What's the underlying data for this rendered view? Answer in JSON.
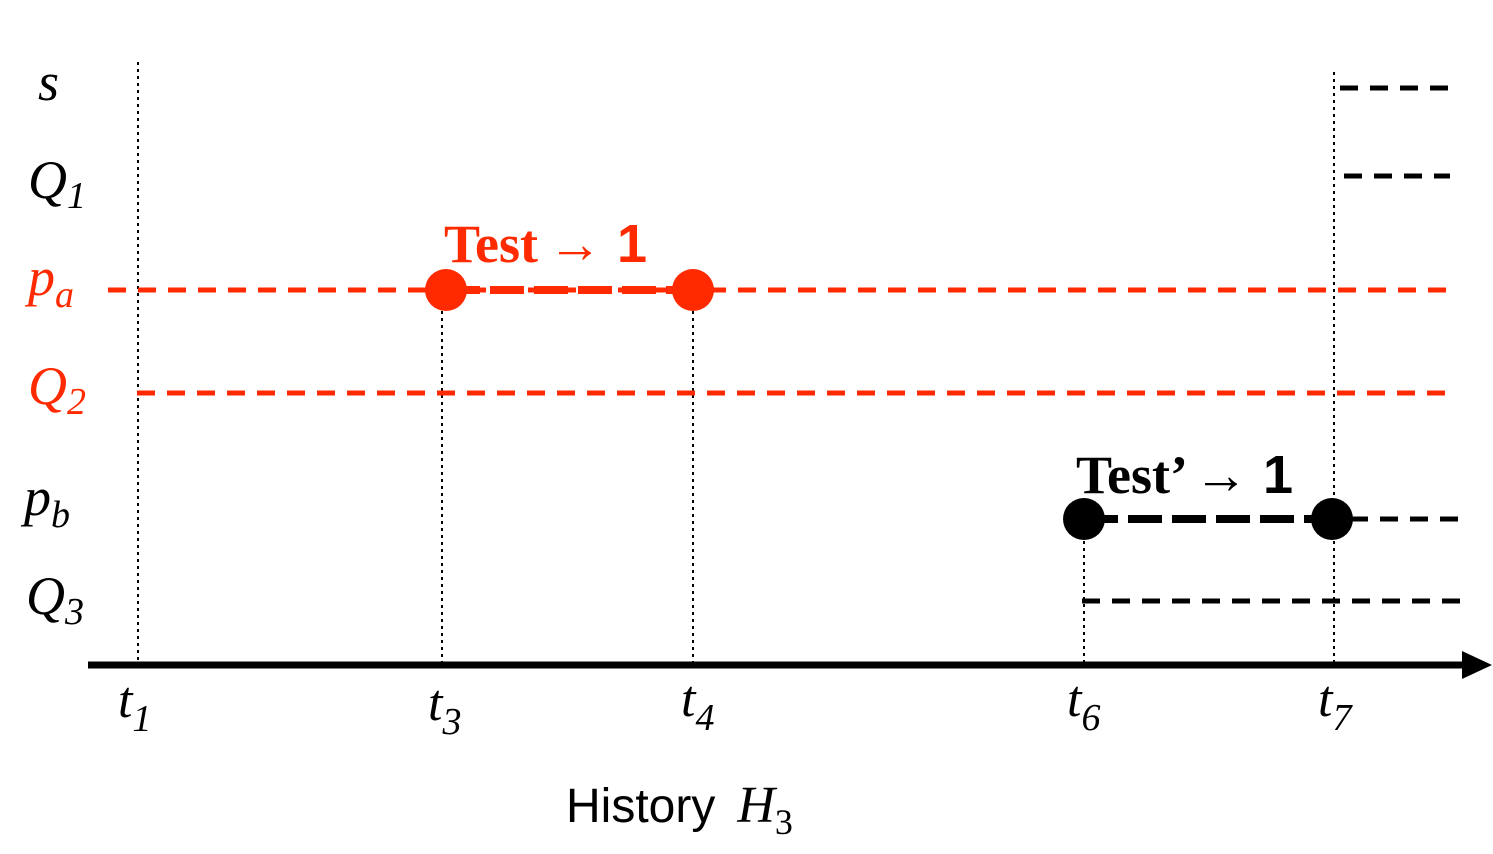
{
  "colors": {
    "red": "#ff2a00",
    "black": "#000000"
  },
  "rows": [
    {
      "id": "s",
      "base": "s",
      "sub": "",
      "color": "black"
    },
    {
      "id": "Q1",
      "base": "Q",
      "sub": "1",
      "color": "black"
    },
    {
      "id": "pa",
      "base": "p",
      "sub": "a",
      "color": "red"
    },
    {
      "id": "Q2",
      "base": "Q",
      "sub": "2",
      "color": "red"
    },
    {
      "id": "pb",
      "base": "p",
      "sub": "b",
      "color": "black"
    },
    {
      "id": "Q3",
      "base": "Q",
      "sub": "3",
      "color": "black"
    }
  ],
  "time_ticks": [
    {
      "id": "t1",
      "base": "t",
      "sub": "1"
    },
    {
      "id": "t3",
      "base": "t",
      "sub": "3"
    },
    {
      "id": "t4",
      "base": "t",
      "sub": "4"
    },
    {
      "id": "t6",
      "base": "t",
      "sub": "6"
    },
    {
      "id": "t7",
      "base": "t",
      "sub": "7"
    }
  ],
  "annotations": {
    "test_a_word": "Test",
    "test_a_arrow": "→ 1",
    "test_b_word": "Test’",
    "test_b_arrow": "→ 1"
  },
  "caption": {
    "text": "History",
    "symbol_base": "H",
    "symbol_sub": "3"
  }
}
